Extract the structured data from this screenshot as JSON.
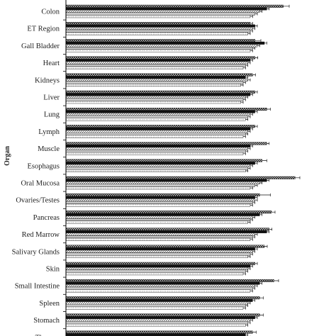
{
  "chart_data": {
    "type": "bar",
    "orientation": "horizontal",
    "ylabel": "Organ",
    "xlabel": "",
    "xlim": [
      0,
      1.0
    ],
    "grid": false,
    "legend": "none",
    "categories": [
      "Colon",
      "ET Region",
      "Gall Bladder",
      "Heart",
      "Kidneys",
      "Liver",
      "Lung",
      "Lymph",
      "Muscle",
      "Esophagus",
      "Oral Mucosa",
      "Ovaries/Testes",
      "Pancreas",
      "Red Marrow",
      "Salivary Glands",
      "Skin",
      "Small Intestine",
      "Spleen",
      "Stomach",
      "Thymus"
    ],
    "series": [
      {
        "fill": "hatch-cross",
        "values": [
          0.92,
          0.78,
          0.8,
          0.8,
          0.79,
          0.8,
          0.85,
          0.8,
          0.85,
          0.83,
          0.97,
          0.82,
          0.87,
          0.86,
          0.84,
          0.8,
          0.88,
          0.82,
          0.82,
          0.79
        ],
        "errors": [
          0.025,
          0.01,
          0.025,
          0.012,
          0.012,
          0.01,
          0.015,
          0.01,
          0.01,
          0.02,
          0.02,
          0.045,
          0.015,
          0.012,
          0.012,
          0.01,
          0.02,
          0.015,
          0.015,
          0.015
        ]
      },
      {
        "fill": "solid-black",
        "values": [
          0.85,
          0.8,
          0.84,
          0.78,
          0.76,
          0.78,
          0.8,
          0.78,
          0.78,
          0.8,
          0.85,
          0.8,
          0.82,
          0.85,
          0.8,
          0.78,
          0.82,
          0.79,
          0.8,
          0.76
        ],
        "errors": [
          0.01,
          0.01,
          0.01,
          0.01,
          0.01,
          0.01,
          0.01,
          0.01,
          0.01,
          0.01,
          0.01,
          0.01,
          0.01,
          0.01,
          0.01,
          0.01,
          0.01,
          0.01,
          0.01,
          0.01
        ]
      },
      {
        "fill": "hatch-diagonal",
        "values": [
          0.82,
          0.79,
          0.81,
          0.77,
          0.77,
          0.76,
          0.78,
          0.77,
          0.77,
          0.78,
          0.82,
          0.8,
          0.79,
          0.8,
          0.79,
          0.77,
          0.8,
          0.77,
          0.78,
          0.77
        ],
        "errors": [
          0.01,
          0.01,
          0.01,
          0.01,
          0.01,
          0.01,
          0.01,
          0.01,
          0.01,
          0.01,
          0.01,
          0.01,
          0.01,
          0.01,
          0.01,
          0.01,
          0.01,
          0.01,
          0.01,
          0.01
        ]
      },
      {
        "fill": "hatch-horizontal",
        "values": [
          0.8,
          0.78,
          0.79,
          0.76,
          0.75,
          0.75,
          0.77,
          0.76,
          0.76,
          0.77,
          0.8,
          0.79,
          0.78,
          0.79,
          0.78,
          0.76,
          0.79,
          0.76,
          0.77,
          0.76
        ],
        "errors": [
          0.01,
          0.01,
          0.01,
          0.01,
          0.01,
          0.01,
          0.01,
          0.01,
          0.01,
          0.01,
          0.01,
          0.01,
          0.01,
          0.01,
          0.01,
          0.01,
          0.01,
          0.01,
          0.01,
          0.01
        ]
      },
      {
        "fill": "hatch-dots",
        "values": [
          0.78,
          0.77,
          0.78,
          0.75,
          0.74,
          0.74,
          0.76,
          0.75,
          0.75,
          0.76,
          0.78,
          0.78,
          0.77,
          0.78,
          0.77,
          0.75,
          0.78,
          0.75,
          0.76,
          0.75
        ],
        "errors": [
          0.01,
          0.01,
          0.01,
          0.01,
          0.01,
          0.01,
          0.01,
          0.01,
          0.01,
          0.01,
          0.01,
          0.01,
          0.01,
          0.01,
          0.01,
          0.01,
          0.01,
          0.01,
          0.01,
          0.01
        ]
      }
    ]
  }
}
